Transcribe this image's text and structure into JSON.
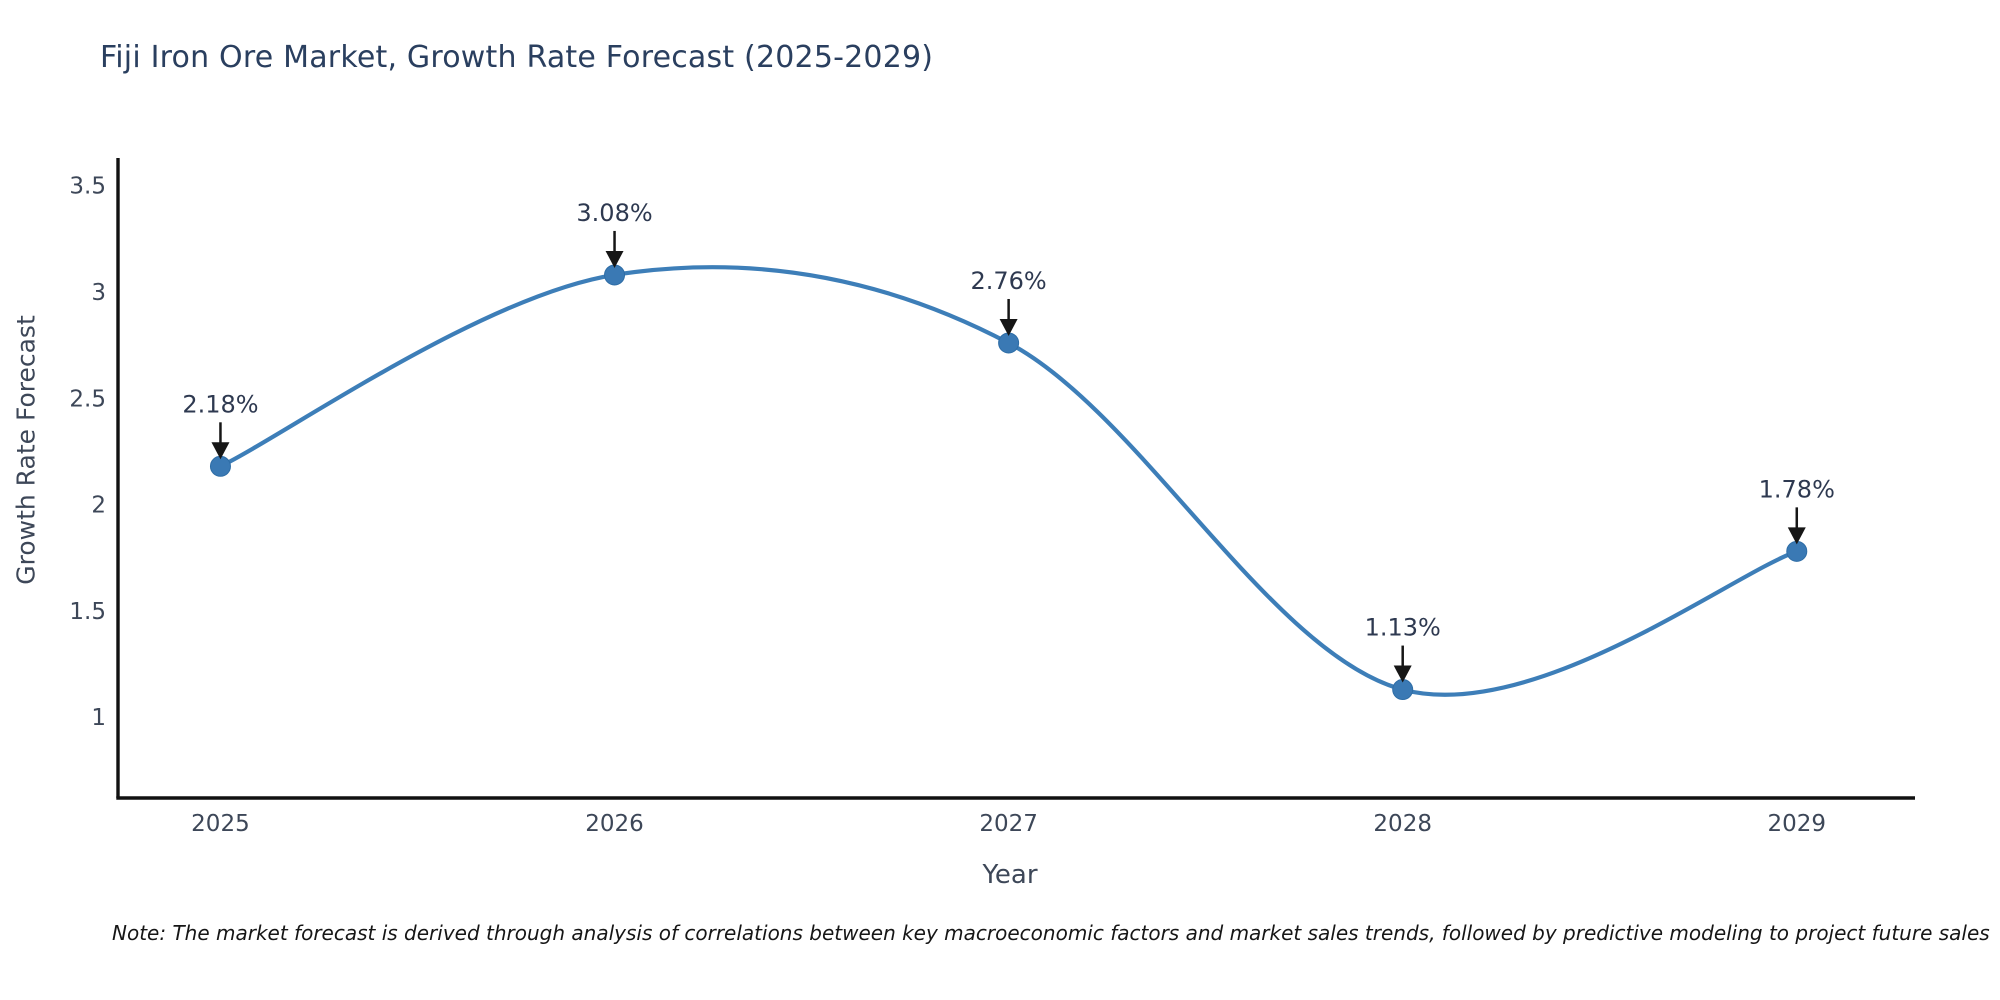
{
  "chart_data": {
    "type": "line",
    "title": "Fiji Iron Ore Market, Growth Rate Forecast (2025-2029)",
    "xlabel": "Year",
    "ylabel": "Growth Rate Forecast",
    "x": [
      2025,
      2026,
      2027,
      2028,
      2029
    ],
    "series": [
      {
        "name": "Growth Rate Forecast",
        "values": [
          2.18,
          3.08,
          2.76,
          1.13,
          1.78
        ]
      }
    ],
    "point_labels": [
      "2.18%",
      "3.08%",
      "2.76%",
      "1.13%",
      "1.78%"
    ],
    "xtick_labels": [
      "2025",
      "2026",
      "2027",
      "2028",
      "2029"
    ],
    "yticks": [
      1,
      1.5,
      2,
      2.5,
      3,
      3.5
    ],
    "xlim": [
      2024.74,
      2029.3
    ],
    "ylim": [
      0.62,
      3.63
    ],
    "grid": false,
    "legend": false,
    "smooth_curve": true,
    "marker": "circle",
    "annotations_have_arrows": true,
    "colors": {
      "line": "#3d7eb8",
      "marker_fill": "#3a79b4",
      "marker_edge": "#2e6da6",
      "annotation_text": "#2e3950",
      "arrow": "#161616",
      "axis_spine": "#111111",
      "tick_label": "#3d4758",
      "axis_title": "#3d4758",
      "title": "#2a3f5f",
      "note_text": "#161616",
      "background": "#ffffff"
    }
  },
  "note": "Note: The market forecast is derived through analysis of correlations between key macroeconomic factors and market sales trends, followed by predictive modeling to project future sales"
}
